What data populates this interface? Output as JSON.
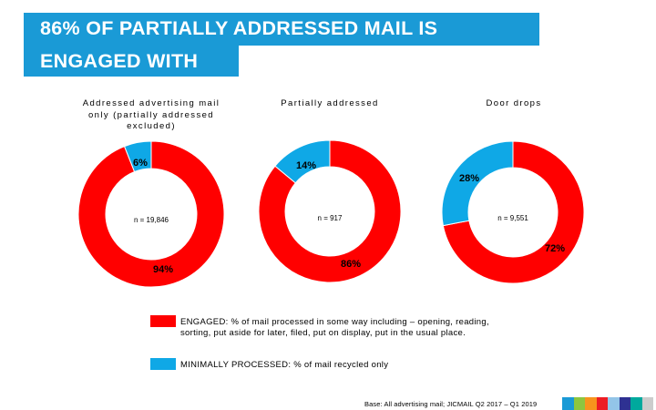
{
  "title": {
    "line1": "86% OF PARTIALLY ADDRESSED MAIL IS",
    "line2": "ENGAGED WITH"
  },
  "chart_data": [
    {
      "type": "pie",
      "title": "Addressed advertising mail only (partially addressed excluded)",
      "n_label": "n = 19,846",
      "slices": [
        {
          "name": "ENGAGED",
          "value": 94,
          "label": "94%",
          "color": "#ff0000"
        },
        {
          "name": "MINIMALLY PROCESSED",
          "value": 6,
          "label": "6%",
          "color": "#0fa8e6"
        }
      ]
    },
    {
      "type": "pie",
      "title": "Partially addressed",
      "n_label": "n = 917",
      "slices": [
        {
          "name": "ENGAGED",
          "value": 86,
          "label": "86%",
          "color": "#ff0000"
        },
        {
          "name": "MINIMALLY PROCESSED",
          "value": 14,
          "label": "14%",
          "color": "#0fa8e6"
        }
      ]
    },
    {
      "type": "pie",
      "title": "Door drops",
      "n_label": "n = 9,551",
      "slices": [
        {
          "name": "ENGAGED",
          "value": 72,
          "label": "72%",
          "color": "#ff0000"
        },
        {
          "name": "MINIMALLY PROCESSED",
          "value": 28,
          "label": "28%",
          "color": "#0fa8e6"
        }
      ]
    }
  ],
  "legend": [
    {
      "text": "ENGAGED: % of mail processed in some way including – opening, reading, sorting, put aside for later, filed, put on display, put in the usual place.",
      "color": "#ff0000"
    },
    {
      "text": "MINIMALLY PROCESSED: % of mail recycled only",
      "color": "#0fa8e6"
    }
  ],
  "source": "Base: All advertising mail; JICMAIL Q2 2017 – Q1 2019",
  "footer_colors": [
    "#1a9ad6",
    "#8dc63f",
    "#f7941d",
    "#ed1c24",
    "#93c5e8",
    "#2e3192",
    "#00a99d",
    "#cccccc"
  ]
}
